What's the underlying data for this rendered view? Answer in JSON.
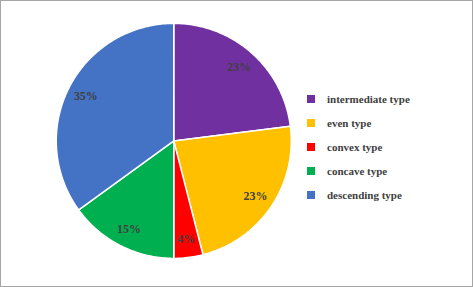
{
  "chart_data": {
    "type": "pie",
    "categories": [
      "intermediate type",
      "even type",
      "convex type",
      "concave type",
      "descending type"
    ],
    "values": [
      23,
      23,
      4,
      15,
      35
    ],
    "value_labels": [
      "23%",
      "23%",
      "4%",
      "15%",
      "35%"
    ],
    "colors": [
      "#7030a0",
      "#ffc000",
      "#ff0000",
      "#00b050",
      "#4472c4"
    ],
    "data_labels": true,
    "legend": "right"
  }
}
